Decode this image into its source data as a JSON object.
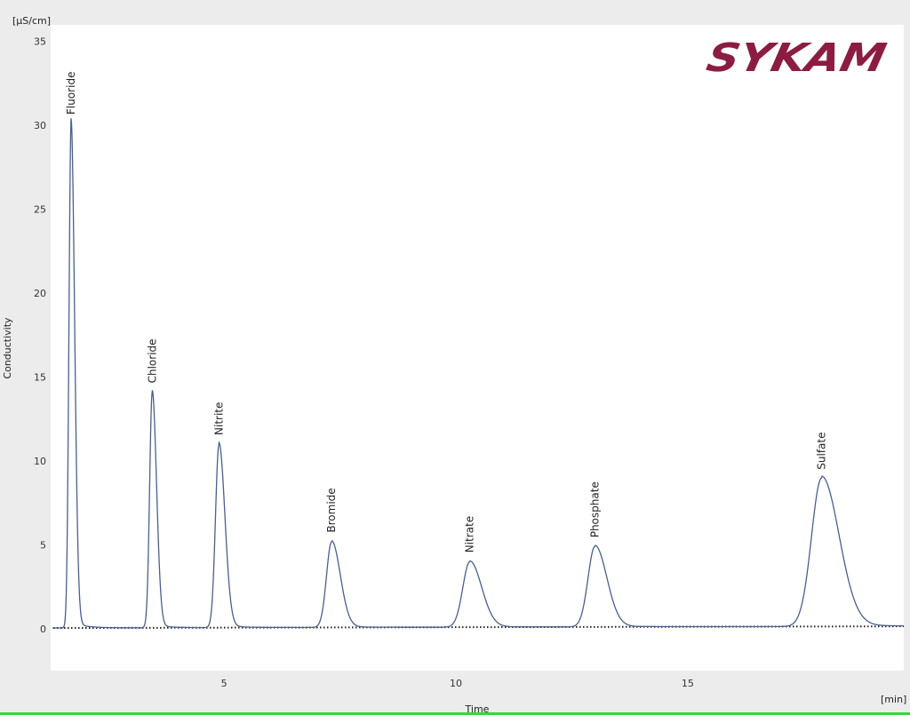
{
  "chart_data": {
    "type": "line",
    "title": "",
    "xlabel": "Time",
    "x_unit": "[min]",
    "ylabel": "Conductivity",
    "y_unit": "[µS/cm]",
    "xlim": [
      1.26,
      19.66
    ],
    "ylim": [
      -2.5,
      36
    ],
    "x_ticks": [
      5,
      10,
      15
    ],
    "y_ticks": [
      0,
      5,
      10,
      15,
      20,
      25,
      30,
      35
    ],
    "grid": false,
    "line_color": "#4a5f8f",
    "baseline": {
      "style": "dotted",
      "color": "#222222",
      "start": 0.05,
      "end": 0.15
    },
    "peaks": [
      {
        "name": "Fluoride",
        "time": 1.7,
        "height": 30.0
      },
      {
        "name": "Chloride",
        "time": 3.45,
        "height": 14.0
      },
      {
        "name": "Nitrite",
        "time": 4.89,
        "height": 10.9
      },
      {
        "name": "Bromide",
        "time": 7.32,
        "height": 5.1
      },
      {
        "name": "Nitrate",
        "time": 10.3,
        "height": 3.9
      },
      {
        "name": "Phosphate",
        "time": 13.0,
        "height": 4.8
      },
      {
        "name": "Sulfate",
        "time": 17.89,
        "height": 8.85
      }
    ]
  },
  "logo": {
    "text": "SYKAM",
    "color": "#8c1d42"
  }
}
